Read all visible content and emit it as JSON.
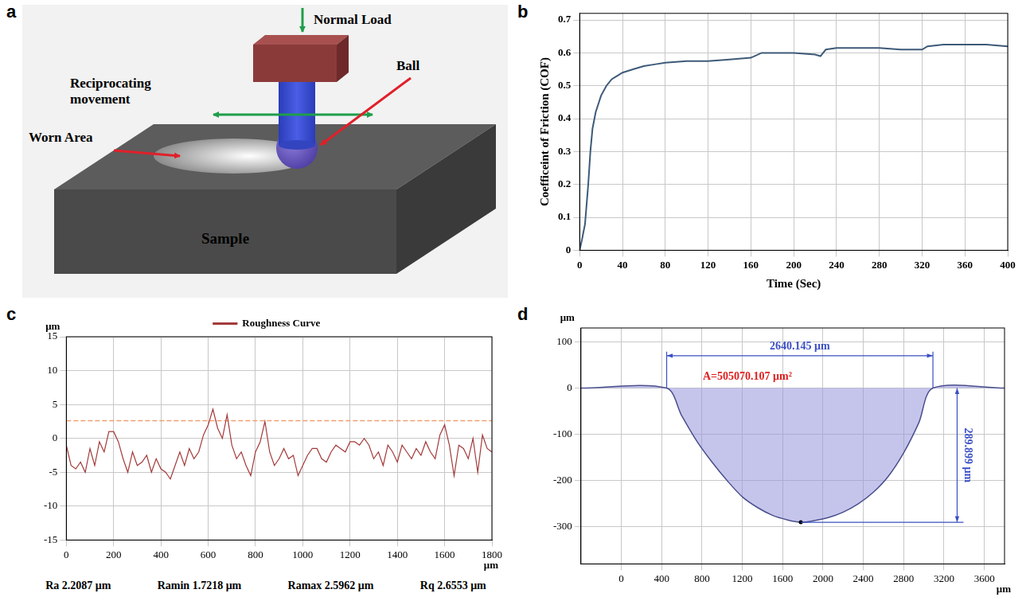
{
  "panels": [
    "a",
    "b",
    "c",
    "d"
  ],
  "diagram": {
    "labels": {
      "normal_load": "Normal Load",
      "reciprocating": "Reciprocating movement",
      "ball": "Ball",
      "worn_area": "Worn Area",
      "sample": "Sample"
    }
  },
  "chart_data": [
    {
      "type": "line",
      "x_label": "Time (Sec)",
      "y_label": "Coefficeint of Friction (COF)",
      "x": [
        0,
        2,
        5,
        8,
        10,
        12,
        15,
        20,
        25,
        30,
        35,
        40,
        50,
        55,
        60,
        70,
        80,
        100,
        120,
        140,
        160,
        170,
        180,
        200,
        220,
        225,
        230,
        240,
        280,
        300,
        320,
        325,
        340,
        360,
        380,
        400
      ],
      "values": [
        0.0,
        0.03,
        0.08,
        0.2,
        0.3,
        0.37,
        0.42,
        0.47,
        0.5,
        0.52,
        0.53,
        0.54,
        0.55,
        0.555,
        0.56,
        0.565,
        0.57,
        0.575,
        0.575,
        0.58,
        0.585,
        0.6,
        0.6,
        0.6,
        0.595,
        0.59,
        0.61,
        0.615,
        0.615,
        0.61,
        0.61,
        0.62,
        0.625,
        0.625,
        0.625,
        0.62
      ],
      "color": "#3d5a78",
      "xlim": [
        0,
        400
      ],
      "xticks": [
        0,
        40,
        80,
        120,
        160,
        200,
        240,
        280,
        320,
        360,
        400
      ],
      "ylim": [
        0,
        0.72
      ],
      "yticks": [
        0,
        0.1,
        0.2,
        0.3,
        0.4,
        0.5,
        0.6,
        0.7
      ],
      "grid": true
    },
    {
      "type": "line",
      "x_label": "μm",
      "y_label": "μm",
      "x": [
        0,
        20,
        40,
        60,
        80,
        100,
        120,
        140,
        160,
        180,
        200,
        220,
        240,
        260,
        280,
        300,
        320,
        340,
        360,
        380,
        400,
        420,
        440,
        460,
        480,
        500,
        520,
        540,
        560,
        580,
        600,
        620,
        640,
        660,
        680,
        700,
        720,
        740,
        760,
        780,
        800,
        820,
        840,
        860,
        880,
        900,
        920,
        940,
        960,
        980,
        1000,
        1020,
        1040,
        1060,
        1080,
        1100,
        1120,
        1140,
        1160,
        1180,
        1200,
        1220,
        1240,
        1260,
        1280,
        1300,
        1320,
        1340,
        1360,
        1380,
        1400,
        1420,
        1440,
        1460,
        1480,
        1500,
        1520,
        1540,
        1560,
        1580,
        1600,
        1620,
        1640,
        1660,
        1680,
        1700,
        1720,
        1740,
        1760,
        1780,
        1800
      ],
      "series": [
        {
          "name": "Roughness Curve",
          "color": "#a33a3a",
          "values": [
            -1,
            -4,
            -4.5,
            -3.5,
            -5,
            -1.5,
            -4,
            -0.5,
            -2,
            1,
            1,
            -0.5,
            -3,
            -5,
            -2,
            -4,
            -3.5,
            -2.5,
            -5,
            -3,
            -4.5,
            -5,
            -6,
            -4,
            -2,
            -4,
            -1.5,
            -3,
            -2,
            0.5,
            2,
            4.3,
            1.5,
            0,
            3.5,
            -1,
            -3,
            -2,
            -4,
            -5.5,
            -2,
            -0.5,
            2.5,
            -2,
            -4,
            -3,
            -1.5,
            -3,
            -2.5,
            -5.5,
            -4,
            -2.5,
            -1.5,
            -1.5,
            -3,
            -3.5,
            -2,
            -1,
            -1.5,
            -2,
            -0.5,
            -0.5,
            -1,
            0,
            -1,
            -3,
            -2,
            -4,
            -1,
            -2,
            -3.5,
            -1,
            -2,
            -3,
            -1.5,
            -2.5,
            -0.5,
            -2,
            -3,
            0.5,
            2,
            -1,
            -5.5,
            -1,
            -1.5,
            -3,
            0,
            -5,
            0.5,
            -1.5,
            -2
          ]
        }
      ],
      "reference_line": {
        "value": 2.6,
        "color": "#f0a070",
        "line_style": "dashed"
      },
      "xlim": [
        0,
        1800
      ],
      "xticks": [
        0,
        200,
        400,
        600,
        800,
        1000,
        1200,
        1400,
        1600,
        1800
      ],
      "ylim": [
        -15,
        15
      ],
      "yticks": [
        -15,
        -10,
        -5,
        0,
        5,
        10,
        15
      ],
      "grid": true,
      "legend": "top",
      "stats": [
        "Ra 2.2087 μm",
        "Ramin 1.7218 μm",
        "Ramax 2.5962 μm",
        "Rq 2.6553 μm"
      ]
    },
    {
      "type": "line",
      "x_label": "μm",
      "y_label": "μm",
      "x": [
        -400,
        450,
        600,
        750,
        900,
        1050,
        1200,
        1350,
        1500,
        1650,
        1780,
        1900,
        2050,
        2200,
        2350,
        2500,
        2650,
        2800,
        2950,
        3090.145,
        3800
      ],
      "values": [
        0,
        0,
        -60,
        -115,
        -160,
        -200,
        -235,
        -258,
        -275,
        -285,
        -289.899,
        -287,
        -280,
        -268,
        -250,
        -225,
        -190,
        -140,
        -75,
        0,
        0
      ],
      "color": "#4a4f8c",
      "xlim": [
        -400,
        3800
      ],
      "xticks": [
        0,
        400,
        800,
        1200,
        1600,
        2000,
        2400,
        2800,
        3200,
        3600
      ],
      "ylim": [
        -380,
        130
      ],
      "yticks": [
        -300,
        -200,
        -100,
        0,
        100
      ],
      "grid": true,
      "annotations": [
        {
          "text": "2640.145 μm",
          "x": [
            450,
            3090.145
          ],
          "y": 70,
          "color": "#3b4fc4"
        },
        {
          "text": "A=505070.107 μm²",
          "x": 1250,
          "y": 25,
          "color": "#e02020"
        },
        {
          "text": "289.899 μm",
          "x": 3330,
          "y": [
            0,
            -289.899
          ],
          "color": "#3b4fc4"
        }
      ]
    }
  ]
}
